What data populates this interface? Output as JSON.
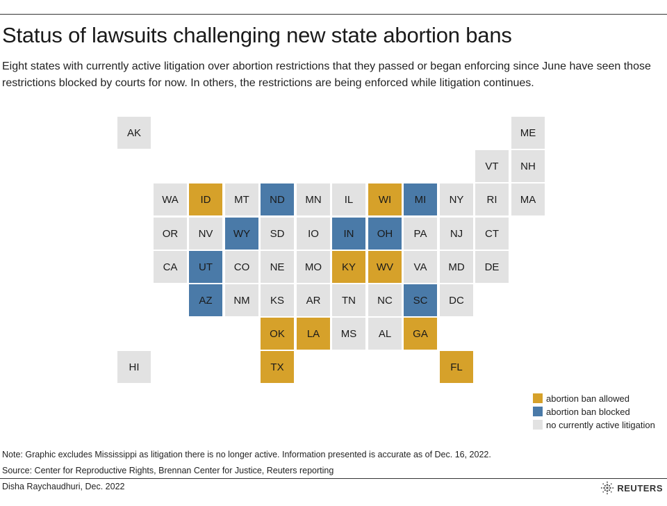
{
  "title": "Status of lawsuits challenging new state abortion bans",
  "subtitle": "Eight states with currently active litigation over abortion restrictions that they passed or began enforcing since June have seen those restrictions blocked by courts for now. In others, the restrictions are being enforced while litigation continues.",
  "colors": {
    "allowed": "#d6a12a",
    "blocked": "#4a7aa8",
    "none": "#e2e2e2"
  },
  "legend": [
    {
      "status": "allowed",
      "label": "abortion ban allowed"
    },
    {
      "status": "blocked",
      "label": "abortion ban blocked"
    },
    {
      "status": "none",
      "label": "no currently active litigation"
    }
  ],
  "states": [
    {
      "abbr": "AK",
      "row": 0,
      "col": 0,
      "status": "none"
    },
    {
      "abbr": "ME",
      "row": 0,
      "col": 11,
      "status": "none"
    },
    {
      "abbr": "VT",
      "row": 1,
      "col": 10,
      "status": "none"
    },
    {
      "abbr": "NH",
      "row": 1,
      "col": 11,
      "status": "none"
    },
    {
      "abbr": "WA",
      "row": 2,
      "col": 1,
      "status": "none"
    },
    {
      "abbr": "ID",
      "row": 2,
      "col": 2,
      "status": "allowed"
    },
    {
      "abbr": "MT",
      "row": 2,
      "col": 3,
      "status": "none"
    },
    {
      "abbr": "ND",
      "row": 2,
      "col": 4,
      "status": "blocked"
    },
    {
      "abbr": "MN",
      "row": 2,
      "col": 5,
      "status": "none"
    },
    {
      "abbr": "IL",
      "row": 2,
      "col": 6,
      "status": "none"
    },
    {
      "abbr": "WI",
      "row": 2,
      "col": 7,
      "status": "allowed"
    },
    {
      "abbr": "MI",
      "row": 2,
      "col": 8,
      "status": "blocked"
    },
    {
      "abbr": "NY",
      "row": 2,
      "col": 9,
      "status": "none"
    },
    {
      "abbr": "RI",
      "row": 2,
      "col": 10,
      "status": "none"
    },
    {
      "abbr": "MA",
      "row": 2,
      "col": 11,
      "status": "none"
    },
    {
      "abbr": "OR",
      "row": 3,
      "col": 1,
      "status": "none"
    },
    {
      "abbr": "NV",
      "row": 3,
      "col": 2,
      "status": "none"
    },
    {
      "abbr": "WY",
      "row": 3,
      "col": 3,
      "status": "blocked"
    },
    {
      "abbr": "SD",
      "row": 3,
      "col": 4,
      "status": "none"
    },
    {
      "abbr": "IO",
      "row": 3,
      "col": 5,
      "status": "none"
    },
    {
      "abbr": "IN",
      "row": 3,
      "col": 6,
      "status": "blocked"
    },
    {
      "abbr": "OH",
      "row": 3,
      "col": 7,
      "status": "blocked"
    },
    {
      "abbr": "PA",
      "row": 3,
      "col": 8,
      "status": "none"
    },
    {
      "abbr": "NJ",
      "row": 3,
      "col": 9,
      "status": "none"
    },
    {
      "abbr": "CT",
      "row": 3,
      "col": 10,
      "status": "none"
    },
    {
      "abbr": "CA",
      "row": 4,
      "col": 1,
      "status": "none"
    },
    {
      "abbr": "UT",
      "row": 4,
      "col": 2,
      "status": "blocked"
    },
    {
      "abbr": "CO",
      "row": 4,
      "col": 3,
      "status": "none"
    },
    {
      "abbr": "NE",
      "row": 4,
      "col": 4,
      "status": "none"
    },
    {
      "abbr": "MO",
      "row": 4,
      "col": 5,
      "status": "none"
    },
    {
      "abbr": "KY",
      "row": 4,
      "col": 6,
      "status": "allowed"
    },
    {
      "abbr": "WV",
      "row": 4,
      "col": 7,
      "status": "allowed"
    },
    {
      "abbr": "VA",
      "row": 4,
      "col": 8,
      "status": "none"
    },
    {
      "abbr": "MD",
      "row": 4,
      "col": 9,
      "status": "none"
    },
    {
      "abbr": "DE",
      "row": 4,
      "col": 10,
      "status": "none"
    },
    {
      "abbr": "AZ",
      "row": 5,
      "col": 2,
      "status": "blocked"
    },
    {
      "abbr": "NM",
      "row": 5,
      "col": 3,
      "status": "none"
    },
    {
      "abbr": "KS",
      "row": 5,
      "col": 4,
      "status": "none"
    },
    {
      "abbr": "AR",
      "row": 5,
      "col": 5,
      "status": "none"
    },
    {
      "abbr": "TN",
      "row": 5,
      "col": 6,
      "status": "none"
    },
    {
      "abbr": "NC",
      "row": 5,
      "col": 7,
      "status": "none"
    },
    {
      "abbr": "SC",
      "row": 5,
      "col": 8,
      "status": "blocked"
    },
    {
      "abbr": "DC",
      "row": 5,
      "col": 9,
      "status": "none"
    },
    {
      "abbr": "OK",
      "row": 6,
      "col": 4,
      "status": "allowed"
    },
    {
      "abbr": "LA",
      "row": 6,
      "col": 5,
      "status": "allowed"
    },
    {
      "abbr": "MS",
      "row": 6,
      "col": 6,
      "status": "none"
    },
    {
      "abbr": "AL",
      "row": 6,
      "col": 7,
      "status": "none"
    },
    {
      "abbr": "GA",
      "row": 6,
      "col": 8,
      "status": "allowed"
    },
    {
      "abbr": "HI",
      "row": 7,
      "col": 0,
      "status": "none"
    },
    {
      "abbr": "TX",
      "row": 7,
      "col": 4,
      "status": "allowed"
    },
    {
      "abbr": "FL",
      "row": 7,
      "col": 9,
      "status": "allowed"
    }
  ],
  "note": "Note: Graphic excludes Mississippi as litigation there is no longer active. Information presented is accurate as of Dec. 16, 2022.",
  "source": "Source: Center for Reproductive Rights, Brennan Center for Justice, Reuters reporting",
  "credit": "Disha Raychaudhuri, Dec. 2022",
  "logo": {
    "text": "REUTERS",
    "icon": "reuters-logo-icon"
  }
}
